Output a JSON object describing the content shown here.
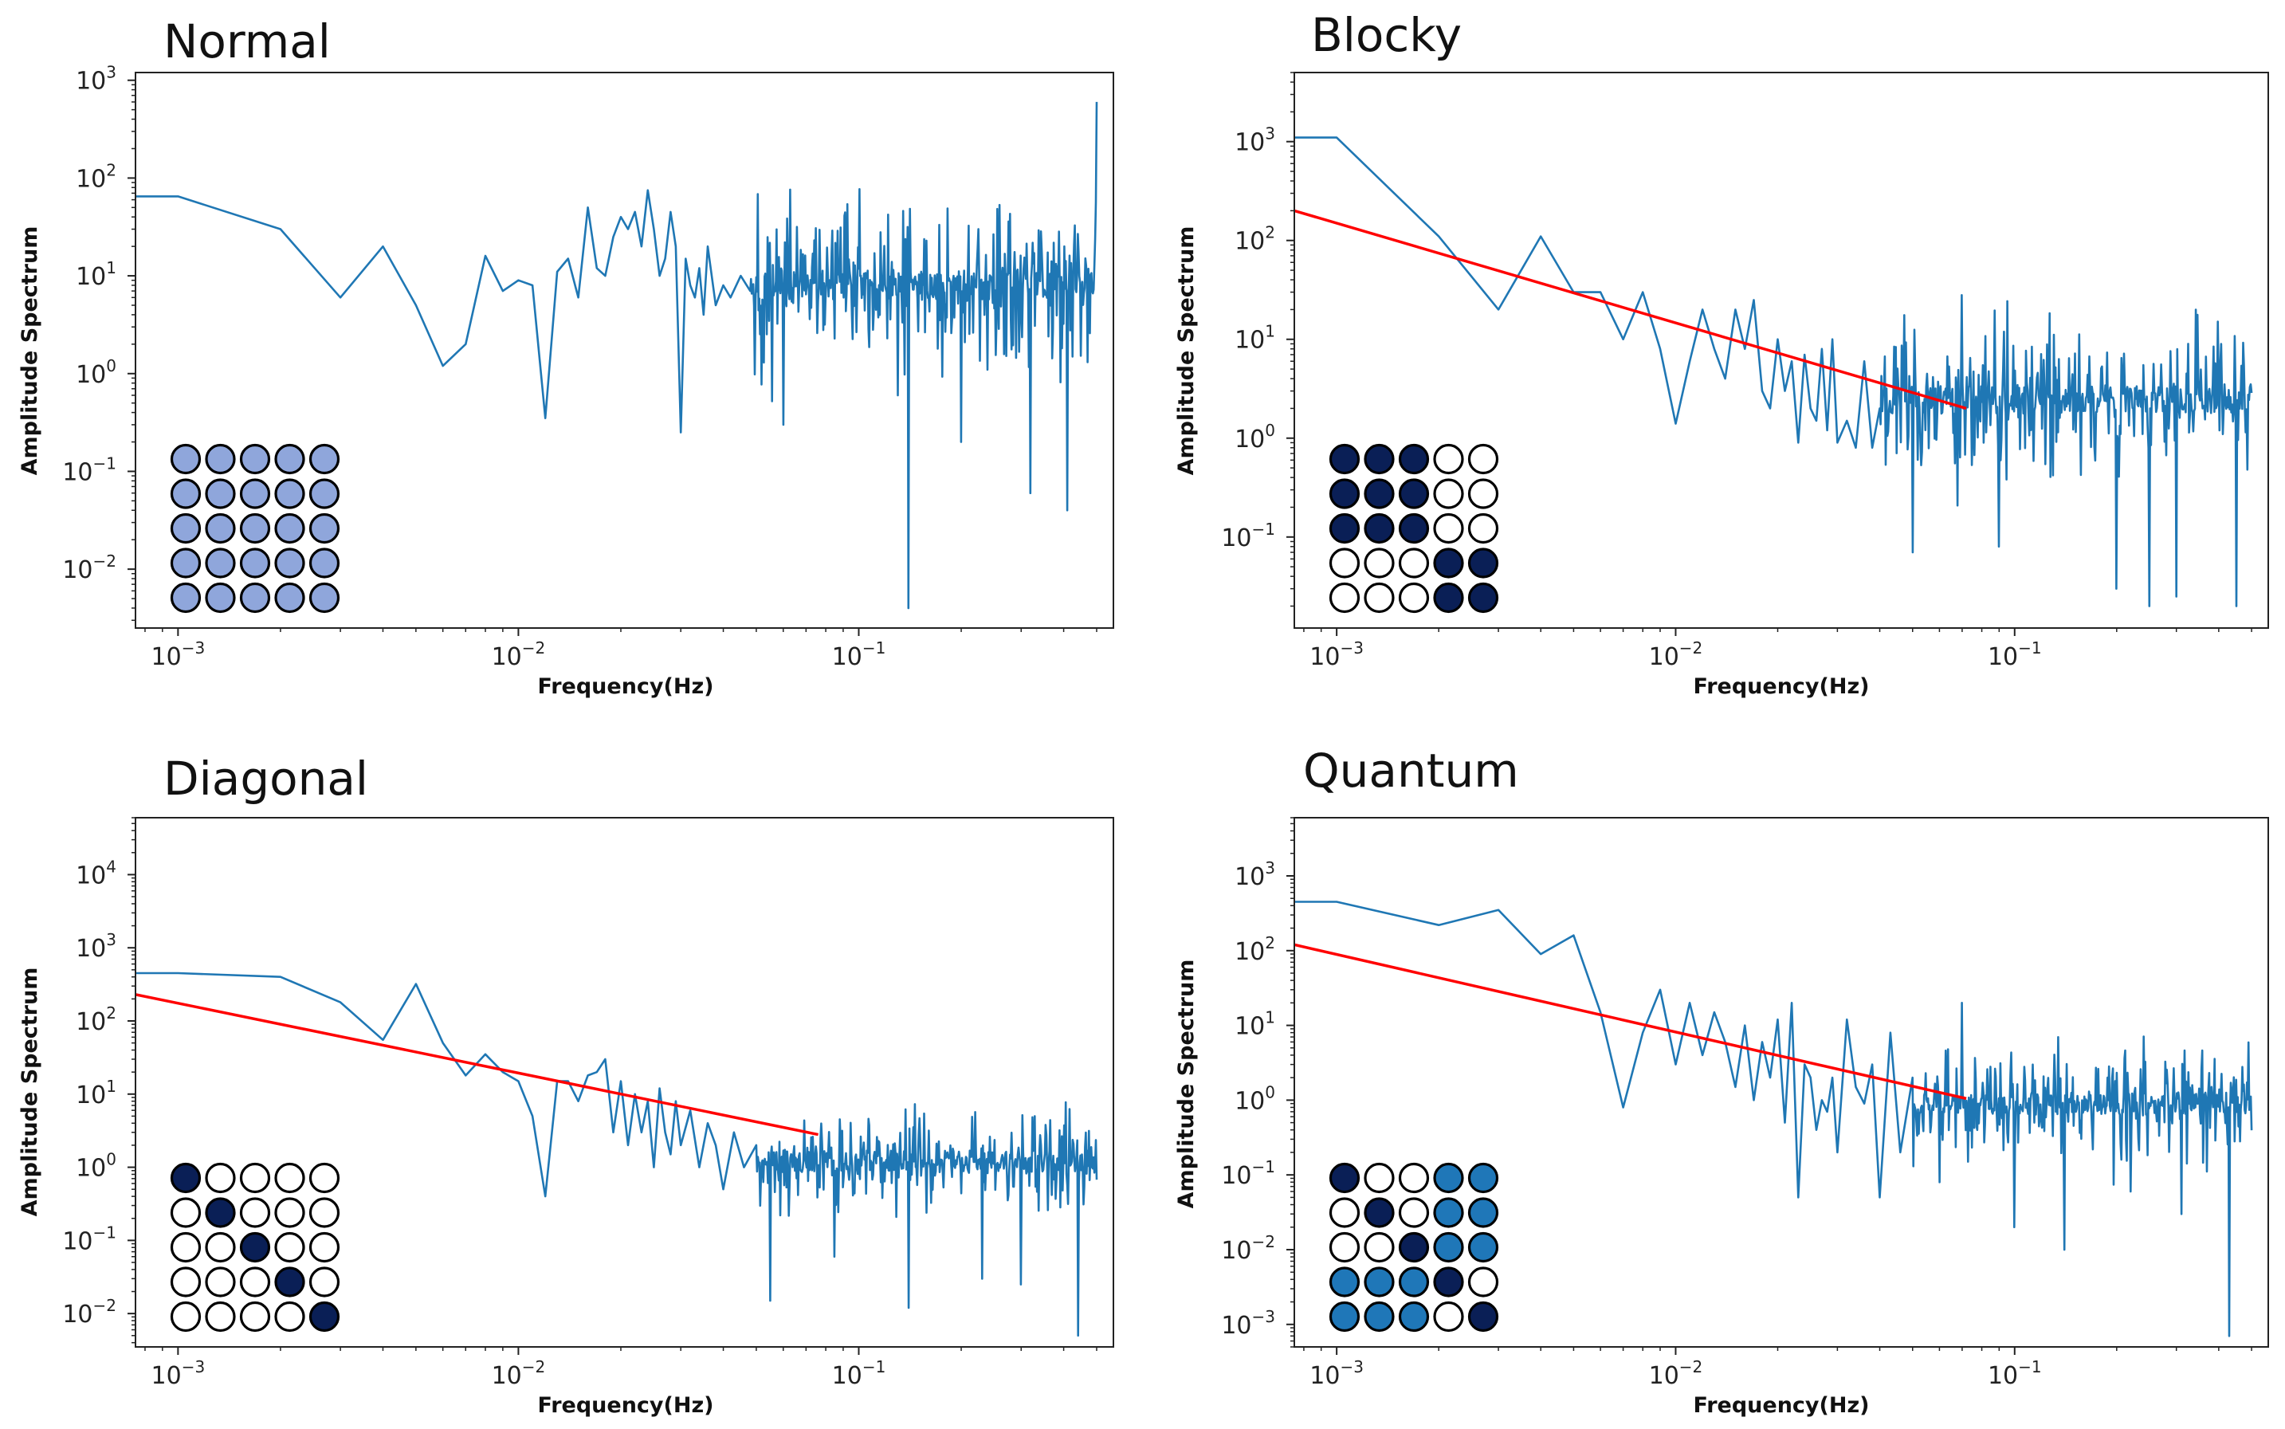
{
  "figure": {
    "background": "#ffffff"
  },
  "chart_data": [
    {
      "type": "line",
      "title": "Normal",
      "xlabel": "Frequency(Hz)",
      "ylabel": "Amplitude Spectrum",
      "xscale": "log",
      "yscale": "log",
      "xlim": [
        0.00075,
        0.56
      ],
      "ylim": [
        0.0025,
        1200
      ],
      "xticks": [
        {
          "base": "10",
          "exp": "−3",
          "value": 0.001
        },
        {
          "base": "10",
          "exp": "−2",
          "value": 0.01
        },
        {
          "base": "10",
          "exp": "−1",
          "value": 0.1
        }
      ],
      "yticks": [
        {
          "base": "10",
          "exp": "−2",
          "value": 0.01
        },
        {
          "base": "10",
          "exp": "−1",
          "value": 0.1
        },
        {
          "base": "10",
          "exp": "0",
          "value": 1
        },
        {
          "base": "10",
          "exp": "1",
          "value": 10
        },
        {
          "base": "10",
          "exp": "2",
          "value": 100
        },
        {
          "base": "10",
          "exp": "3",
          "value": 1000
        }
      ],
      "grid": false,
      "series": [
        {
          "color": "#1f77b4",
          "pattern": "spectrum",
          "x": [
            0.00075,
            0.001,
            0.002,
            0.003,
            0.004,
            0.005,
            0.006,
            0.007,
            0.008,
            0.009,
            0.01,
            0.011,
            0.012,
            0.013,
            0.014,
            0.015,
            0.016,
            0.017,
            0.018,
            0.019,
            0.02,
            0.021,
            0.022,
            0.023,
            0.024,
            0.025,
            0.026,
            0.027,
            0.028,
            0.029,
            0.03,
            0.031,
            0.032,
            0.033,
            0.034,
            0.035,
            0.036,
            0.038,
            0.04,
            0.042,
            0.045,
            0.048
          ],
          "y": [
            65,
            65,
            30,
            6,
            20,
            5,
            1.2,
            2,
            16,
            7,
            9,
            8,
            0.35,
            11,
            15,
            6,
            50,
            12,
            10,
            25,
            40,
            30,
            45,
            20,
            75,
            30,
            10,
            15,
            45,
            20,
            0.25,
            15,
            8,
            6,
            12,
            4,
            20,
            5,
            8,
            6,
            10,
            7
          ],
          "noise": {
            "from": 0.048,
            "to": 0.5,
            "count": 460,
            "center": 8,
            "spread": 0.55,
            "dips": [
              {
                "x": 0.13,
                "y": 0.6
              },
              {
                "x": 0.14,
                "y": 0.004
              },
              {
                "x": 0.2,
                "y": 0.2
              },
              {
                "x": 0.32,
                "y": 0.06
              },
              {
                "x": 0.41,
                "y": 0.04
              },
              {
                "x": 0.06,
                "y": 0.3
              }
            ],
            "spikes": [
              {
                "x": 0.5,
                "y": 600
              }
            ],
            "seed": 11
          }
        }
      ],
      "trend_line": null,
      "inset_grid": {
        "rows": 5,
        "cols": 5,
        "cells": [
          [
            "light",
            "light",
            "light",
            "light",
            "light"
          ],
          [
            "light",
            "light",
            "light",
            "light",
            "light"
          ],
          [
            "light",
            "light",
            "light",
            "light",
            "light"
          ],
          [
            "light",
            "light",
            "light",
            "light",
            "light"
          ],
          [
            "light",
            "light",
            "light",
            "light",
            "light"
          ]
        ]
      }
    },
    {
      "type": "line",
      "title": "Blocky",
      "xlabel": "Frequency(Hz)",
      "ylabel": "Amplitude Spectrum",
      "xscale": "log",
      "yscale": "log",
      "xlim": [
        0.00075,
        0.56
      ],
      "ylim": [
        0.012,
        5000
      ],
      "xticks": [
        {
          "base": "10",
          "exp": "−3",
          "value": 0.001
        },
        {
          "base": "10",
          "exp": "−2",
          "value": 0.01
        },
        {
          "base": "10",
          "exp": "−1",
          "value": 0.1
        }
      ],
      "yticks": [
        {
          "base": "10",
          "exp": "−1",
          "value": 0.1
        },
        {
          "base": "10",
          "exp": "0",
          "value": 1
        },
        {
          "base": "10",
          "exp": "1",
          "value": 10
        },
        {
          "base": "10",
          "exp": "2",
          "value": 100
        },
        {
          "base": "10",
          "exp": "3",
          "value": 1000
        }
      ],
      "grid": false,
      "series": [
        {
          "color": "#1f77b4",
          "pattern": "spectrum",
          "x": [
            0.00075,
            0.001,
            0.002,
            0.003,
            0.004,
            0.005,
            0.006,
            0.007,
            0.008,
            0.009,
            0.01,
            0.011,
            0.012,
            0.013,
            0.014,
            0.015,
            0.016,
            0.017,
            0.018,
            0.019,
            0.02,
            0.021,
            0.022,
            0.023,
            0.024,
            0.025,
            0.026,
            0.027,
            0.028,
            0.029,
            0.03,
            0.032,
            0.034,
            0.036,
            0.038,
            0.04
          ],
          "y": [
            1100,
            1100,
            110,
            20,
            110,
            30,
            30,
            10,
            30,
            8,
            1.4,
            6,
            20,
            8,
            4,
            20,
            8,
            25,
            3,
            2,
            10,
            3,
            6,
            0.9,
            7,
            2,
            1.5,
            8,
            1.2,
            10,
            0.9,
            1.5,
            0.8,
            6,
            0.8,
            2
          ],
          "noise": {
            "from": 0.04,
            "to": 0.5,
            "count": 440,
            "center": 2.5,
            "spread": 0.5,
            "dips": [
              {
                "x": 0.05,
                "y": 0.07
              },
              {
                "x": 0.09,
                "y": 0.08
              },
              {
                "x": 0.2,
                "y": 0.03
              },
              {
                "x": 0.25,
                "y": 0.02
              },
              {
                "x": 0.3,
                "y": 0.025
              },
              {
                "x": 0.45,
                "y": 0.02
              }
            ],
            "spikes": [
              {
                "x": 0.07,
                "y": 28
              }
            ],
            "seed": 23
          }
        }
      ],
      "trend_line": {
        "color": "#ff0000",
        "x": [
          0.00075,
          0.072
        ],
        "y": [
          200,
          2.0
        ]
      },
      "inset_grid": {
        "rows": 5,
        "cols": 5,
        "cells": [
          [
            "dark",
            "dark",
            "dark",
            "empty",
            "empty"
          ],
          [
            "dark",
            "dark",
            "dark",
            "empty",
            "empty"
          ],
          [
            "dark",
            "dark",
            "dark",
            "empty",
            "empty"
          ],
          [
            "empty",
            "empty",
            "empty",
            "dark",
            "dark"
          ],
          [
            "empty",
            "empty",
            "empty",
            "dark",
            "dark"
          ]
        ]
      }
    },
    {
      "type": "line",
      "title": "Diagonal",
      "xlabel": "Frequency(Hz)",
      "ylabel": "Amplitude Spectrum",
      "xscale": "log",
      "yscale": "log",
      "xlim": [
        0.00075,
        0.56
      ],
      "ylim": [
        0.0035,
        60000
      ],
      "xticks": [
        {
          "base": "10",
          "exp": "−3",
          "value": 0.001
        },
        {
          "base": "10",
          "exp": "−2",
          "value": 0.01
        },
        {
          "base": "10",
          "exp": "−1",
          "value": 0.1
        }
      ],
      "yticks": [
        {
          "base": "10",
          "exp": "−2",
          "value": 0.01
        },
        {
          "base": "10",
          "exp": "−1",
          "value": 0.1
        },
        {
          "base": "10",
          "exp": "0",
          "value": 1
        },
        {
          "base": "10",
          "exp": "1",
          "value": 10
        },
        {
          "base": "10",
          "exp": "2",
          "value": 100
        },
        {
          "base": "10",
          "exp": "3",
          "value": 1000
        },
        {
          "base": "10",
          "exp": "4",
          "value": 10000
        }
      ],
      "grid": false,
      "series": [
        {
          "color": "#1f77b4",
          "pattern": "spectrum",
          "x": [
            0.00075,
            0.001,
            0.002,
            0.003,
            0.004,
            0.005,
            0.006,
            0.007,
            0.008,
            0.009,
            0.01,
            0.011,
            0.012,
            0.013,
            0.014,
            0.015,
            0.016,
            0.017,
            0.018,
            0.019,
            0.02,
            0.021,
            0.022,
            0.023,
            0.024,
            0.025,
            0.026,
            0.027,
            0.028,
            0.029,
            0.03,
            0.032,
            0.034,
            0.036,
            0.038,
            0.04,
            0.043,
            0.046,
            0.05
          ],
          "y": [
            450,
            450,
            400,
            180,
            55,
            320,
            50,
            18,
            35,
            20,
            15,
            5,
            0.4,
            15,
            15,
            8,
            18,
            20,
            30,
            3,
            15,
            2,
            10,
            3,
            8,
            1,
            12,
            3,
            1.5,
            8,
            2,
            6,
            1,
            4,
            2,
            0.5,
            3,
            1,
            2
          ],
          "noise": {
            "from": 0.05,
            "to": 0.5,
            "count": 440,
            "center": 1.2,
            "spread": 0.45,
            "dips": [
              {
                "x": 0.055,
                "y": 0.015
              },
              {
                "x": 0.085,
                "y": 0.06
              },
              {
                "x": 0.14,
                "y": 0.012
              },
              {
                "x": 0.23,
                "y": 0.03
              },
              {
                "x": 0.3,
                "y": 0.025
              },
              {
                "x": 0.44,
                "y": 0.005
              }
            ],
            "spikes": [],
            "seed": 37
          }
        }
      ],
      "trend_line": {
        "color": "#ff0000",
        "x": [
          0.00075,
          0.076
        ],
        "y": [
          230,
          2.8
        ]
      },
      "inset_grid": {
        "rows": 5,
        "cols": 5,
        "cells": [
          [
            "dark",
            "empty",
            "empty",
            "empty",
            "empty"
          ],
          [
            "empty",
            "dark",
            "empty",
            "empty",
            "empty"
          ],
          [
            "empty",
            "empty",
            "dark",
            "empty",
            "empty"
          ],
          [
            "empty",
            "empty",
            "empty",
            "dark",
            "empty"
          ],
          [
            "empty",
            "empty",
            "empty",
            "empty",
            "dark"
          ]
        ]
      }
    },
    {
      "type": "line",
      "title": "Quantum",
      "xlabel": "Frequency(Hz)",
      "ylabel": "Amplitude Spectrum",
      "xscale": "log",
      "yscale": "log",
      "xlim": [
        0.00075,
        0.56
      ],
      "ylim": [
        0.0005,
        6000
      ],
      "xticks": [
        {
          "base": "10",
          "exp": "−3",
          "value": 0.001
        },
        {
          "base": "10",
          "exp": "−2",
          "value": 0.01
        },
        {
          "base": "10",
          "exp": "−1",
          "value": 0.1
        }
      ],
      "yticks": [
        {
          "base": "10",
          "exp": "−3",
          "value": 0.001
        },
        {
          "base": "10",
          "exp": "−2",
          "value": 0.01
        },
        {
          "base": "10",
          "exp": "−1",
          "value": 0.1
        },
        {
          "base": "10",
          "exp": "0",
          "value": 1
        },
        {
          "base": "10",
          "exp": "1",
          "value": 10
        },
        {
          "base": "10",
          "exp": "2",
          "value": 100
        },
        {
          "base": "10",
          "exp": "3",
          "value": 1000
        }
      ],
      "grid": false,
      "series": [
        {
          "color": "#1f77b4",
          "pattern": "spectrum",
          "x": [
            0.00075,
            0.001,
            0.002,
            0.003,
            0.004,
            0.005,
            0.006,
            0.007,
            0.008,
            0.009,
            0.01,
            0.011,
            0.012,
            0.013,
            0.014,
            0.015,
            0.016,
            0.017,
            0.018,
            0.019,
            0.02,
            0.021,
            0.022,
            0.023,
            0.024,
            0.025,
            0.026,
            0.027,
            0.028,
            0.029,
            0.03,
            0.032,
            0.034,
            0.036,
            0.038,
            0.04,
            0.043,
            0.046,
            0.05
          ],
          "y": [
            450,
            450,
            220,
            350,
            90,
            160,
            15,
            0.8,
            8,
            30,
            3,
            20,
            4,
            15,
            6,
            1.5,
            10,
            1,
            6,
            2,
            12,
            0.5,
            20,
            0.05,
            3,
            2,
            0.4,
            1,
            0.7,
            2,
            0.2,
            12,
            1.5,
            0.9,
            3,
            0.05,
            8,
            0.2,
            2
          ],
          "noise": {
            "from": 0.05,
            "to": 0.5,
            "count": 440,
            "center": 0.9,
            "spread": 0.5,
            "dips": [
              {
                "x": 0.06,
                "y": 0.08
              },
              {
                "x": 0.1,
                "y": 0.02
              },
              {
                "x": 0.14,
                "y": 0.01
              },
              {
                "x": 0.22,
                "y": 0.06
              },
              {
                "x": 0.31,
                "y": 0.03
              },
              {
                "x": 0.43,
                "y": 0.0007
              }
            ],
            "spikes": [
              {
                "x": 0.07,
                "y": 20
              }
            ],
            "seed": 53
          }
        }
      ],
      "trend_line": {
        "color": "#ff0000",
        "x": [
          0.00075,
          0.072
        ],
        "y": [
          120,
          1.05
        ]
      },
      "inset_grid": {
        "rows": 5,
        "cols": 5,
        "cells": [
          [
            "dark",
            "empty",
            "empty",
            "medium",
            "medium"
          ],
          [
            "empty",
            "dark",
            "empty",
            "medium",
            "medium"
          ],
          [
            "empty",
            "empty",
            "dark",
            "medium",
            "medium"
          ],
          [
            "medium",
            "medium",
            "medium",
            "dark",
            "empty"
          ],
          [
            "medium",
            "medium",
            "medium",
            "empty",
            "dark"
          ]
        ]
      }
    }
  ],
  "colors": {
    "light": "#8fa6db",
    "dark": "#0a1f56",
    "medium": "#1f77b8",
    "empty": "#ffffff",
    "spectrum": "#1f77b4",
    "trend": "#ff0000"
  }
}
